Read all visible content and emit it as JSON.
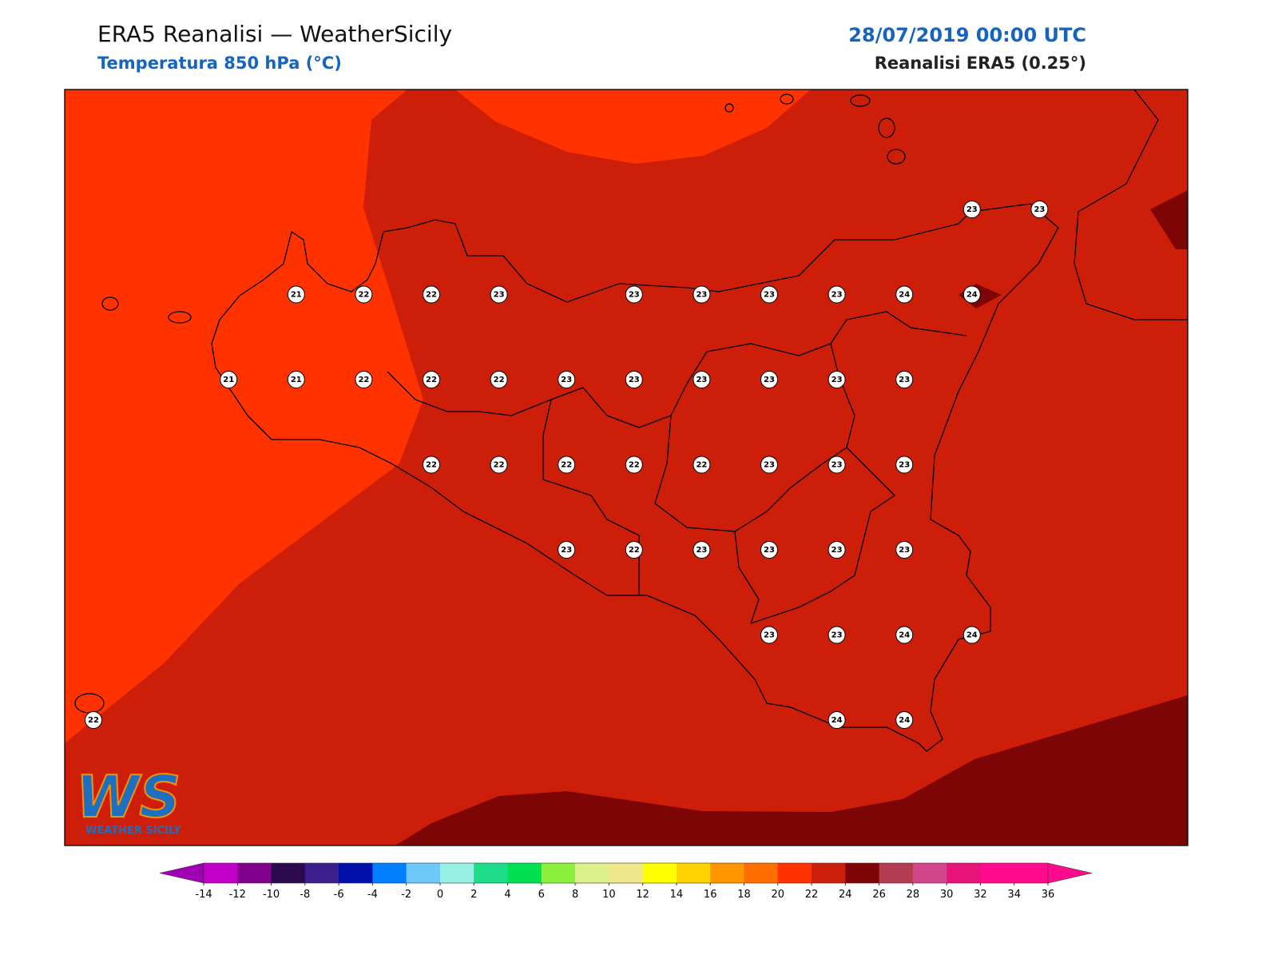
{
  "header": {
    "title": "ERA5 Reanalisi — WeatherSicily",
    "subtitle": "Temperatura 850 hPa (°C)",
    "datetime": "28/07/2019 00:00 UTC",
    "source": "Reanalisi ERA5 (0.25°)"
  },
  "grid_values": [
    [
      null,
      null,
      null,
      null,
      null,
      null,
      null,
      null,
      null,
      null,
      null,
      null,
      null,
      23,
      23
    ],
    [
      null,
      null,
      null,
      21,
      22,
      22,
      23,
      null,
      23,
      23,
      23,
      23,
      24,
      24,
      null
    ],
    [
      null,
      null,
      21,
      21,
      22,
      22,
      22,
      23,
      23,
      23,
      23,
      23,
      23,
      null,
      null
    ],
    [
      null,
      null,
      null,
      null,
      null,
      22,
      22,
      22,
      22,
      22,
      23,
      23,
      23,
      null,
      null
    ],
    [
      null,
      null,
      null,
      null,
      null,
      null,
      null,
      23,
      22,
      23,
      23,
      23,
      23,
      null,
      null
    ],
    [
      null,
      null,
      null,
      null,
      null,
      null,
      null,
      null,
      null,
      null,
      23,
      23,
      24,
      24,
      null
    ],
    [
      22,
      null,
      null,
      null,
      null,
      null,
      null,
      null,
      null,
      null,
      null,
      24,
      24,
      null,
      null
    ]
  ],
  "colorbar": {
    "ticks": [
      -14,
      -12,
      -10,
      -8,
      -6,
      -4,
      -2,
      0,
      2,
      4,
      6,
      8,
      10,
      12,
      14,
      16,
      18,
      20,
      22,
      24,
      26,
      28,
      30,
      32,
      34,
      36
    ],
    "colors": [
      "#c000c8",
      "#80008c",
      "#2d0a4e",
      "#3c1e8c",
      "#0010a8",
      "#0080ff",
      "#6ec8f8",
      "#96f0e6",
      "#1ede8c",
      "#00e050",
      "#8cf03c",
      "#dcf08c",
      "#f0e68c",
      "#ffff00",
      "#ffd200",
      "#ff9600",
      "#ff6e00",
      "#ff3200",
      "#cd1e0a",
      "#7d0505",
      "#b43c50",
      "#d2468c",
      "#e61478",
      "#ff0a8c",
      "#ff0a8c"
    ],
    "extend_colors": [
      "#a000b4",
      "#ff0a8c"
    ]
  },
  "logo": {
    "text": "WS",
    "caption": "WEATHER SICILY"
  }
}
